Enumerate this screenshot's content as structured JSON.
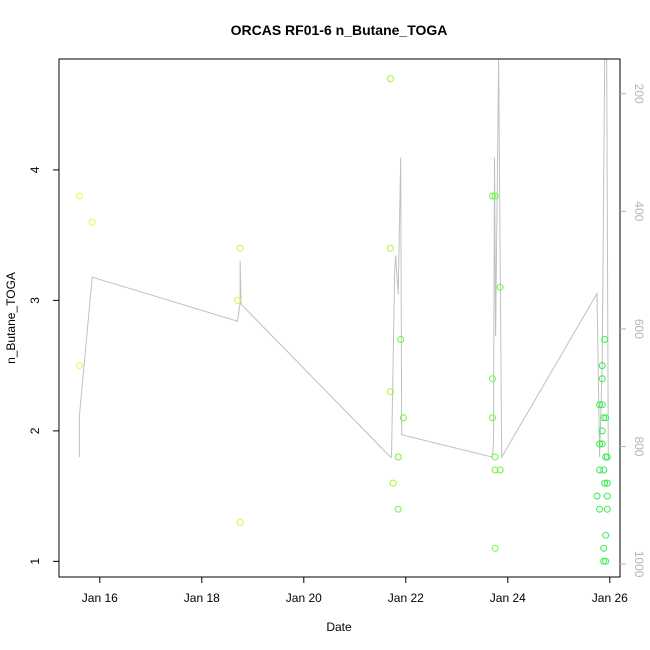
{
  "chart_data": {
    "type": "scatter",
    "title": "ORCAS RF01-6 n_Butane_TOGA",
    "xlabel": "Date",
    "ylabel": "n_Butane_TOGA",
    "x_unit": "days (January 2016)",
    "xlim": [
      15.2,
      26.2
    ],
    "ylim": [
      0.88,
      4.85
    ],
    "x_ticks": [
      16,
      18,
      20,
      22,
      24,
      26
    ],
    "x_tick_labels": [
      "Jan 16",
      "Jan 18",
      "Jan 20",
      "Jan 22",
      "Jan 24",
      "Jan 26"
    ],
    "y_ticks": [
      1,
      2,
      3,
      4
    ],
    "y_tick_labels": [
      "1",
      "2",
      "3",
      "4"
    ],
    "right_axis": {
      "reversed": true,
      "ylim": [
        1022,
        141
      ],
      "ticks": [
        200,
        400,
        600,
        800,
        1000
      ],
      "tick_labels": [
        "200",
        "400",
        "600",
        "800",
        "1000"
      ],
      "color": "#b5b5b5"
    },
    "colors": {
      "line": "#c0c0c0",
      "point_scale": [
        "#f5f542",
        "#d6f53d",
        "#a8f53a",
        "#6ef540",
        "#33f04a"
      ]
    },
    "points": [
      {
        "x": 15.6,
        "y": 3.8
      },
      {
        "x": 15.6,
        "y": 2.5
      },
      {
        "x": 15.85,
        "y": 3.6
      },
      {
        "x": 18.7,
        "y": 3.0
      },
      {
        "x": 18.75,
        "y": 3.4
      },
      {
        "x": 18.75,
        "y": 1.3
      },
      {
        "x": 21.7,
        "y": 4.7
      },
      {
        "x": 21.7,
        "y": 3.4
      },
      {
        "x": 21.7,
        "y": 2.3
      },
      {
        "x": 21.75,
        "y": 1.6
      },
      {
        "x": 21.85,
        "y": 1.8
      },
      {
        "x": 21.85,
        "y": 1.4
      },
      {
        "x": 21.9,
        "y": 2.7
      },
      {
        "x": 21.95,
        "y": 2.1
      },
      {
        "x": 23.7,
        "y": 3.8
      },
      {
        "x": 23.75,
        "y": 3.8
      },
      {
        "x": 23.7,
        "y": 2.4
      },
      {
        "x": 23.7,
        "y": 2.1
      },
      {
        "x": 23.75,
        "y": 1.8
      },
      {
        "x": 23.75,
        "y": 1.7
      },
      {
        "x": 23.75,
        "y": 1.1
      },
      {
        "x": 23.85,
        "y": 3.1
      },
      {
        "x": 23.85,
        "y": 1.7
      },
      {
        "x": 25.75,
        "y": 1.5
      },
      {
        "x": 25.8,
        "y": 2.2
      },
      {
        "x": 25.8,
        "y": 1.9
      },
      {
        "x": 25.8,
        "y": 1.7
      },
      {
        "x": 25.8,
        "y": 1.4
      },
      {
        "x": 25.85,
        "y": 2.5
      },
      {
        "x": 25.85,
        "y": 2.4
      },
      {
        "x": 25.85,
        "y": 2.2
      },
      {
        "x": 25.85,
        "y": 2.0
      },
      {
        "x": 25.85,
        "y": 1.9
      },
      {
        "x": 25.88,
        "y": 2.1
      },
      {
        "x": 25.88,
        "y": 1.7
      },
      {
        "x": 25.88,
        "y": 1.1
      },
      {
        "x": 25.88,
        "y": 1.0
      },
      {
        "x": 25.9,
        "y": 2.7
      },
      {
        "x": 25.9,
        "y": 1.6
      },
      {
        "x": 25.92,
        "y": 2.1
      },
      {
        "x": 25.92,
        "y": 1.8
      },
      {
        "x": 25.92,
        "y": 1.2
      },
      {
        "x": 25.92,
        "y": 1.0
      },
      {
        "x": 25.95,
        "y": 1.8
      },
      {
        "x": 25.95,
        "y": 1.6
      },
      {
        "x": 25.95,
        "y": 1.5
      },
      {
        "x": 25.95,
        "y": 1.4
      }
    ],
    "line_series": {
      "name": "",
      "axis": "right",
      "x": [
        15.6,
        15.6,
        15.85,
        18.7,
        18.75,
        18.75,
        18.77,
        21.7,
        21.72,
        21.78,
        21.8,
        21.85,
        21.9,
        21.92,
        23.7,
        23.72,
        23.74,
        23.76,
        23.8,
        23.82,
        23.88,
        25.75,
        25.8,
        25.85,
        25.9,
        25.94,
        25.97
      ],
      "y": [
        818,
        748,
        512,
        587,
        556,
        484,
        558,
        818,
        818,
        507,
        475,
        541,
        309,
        780,
        818,
        791,
        309,
        612,
        305,
        141,
        818,
        540,
        818,
        660,
        141,
        141,
        818
      ]
    }
  }
}
